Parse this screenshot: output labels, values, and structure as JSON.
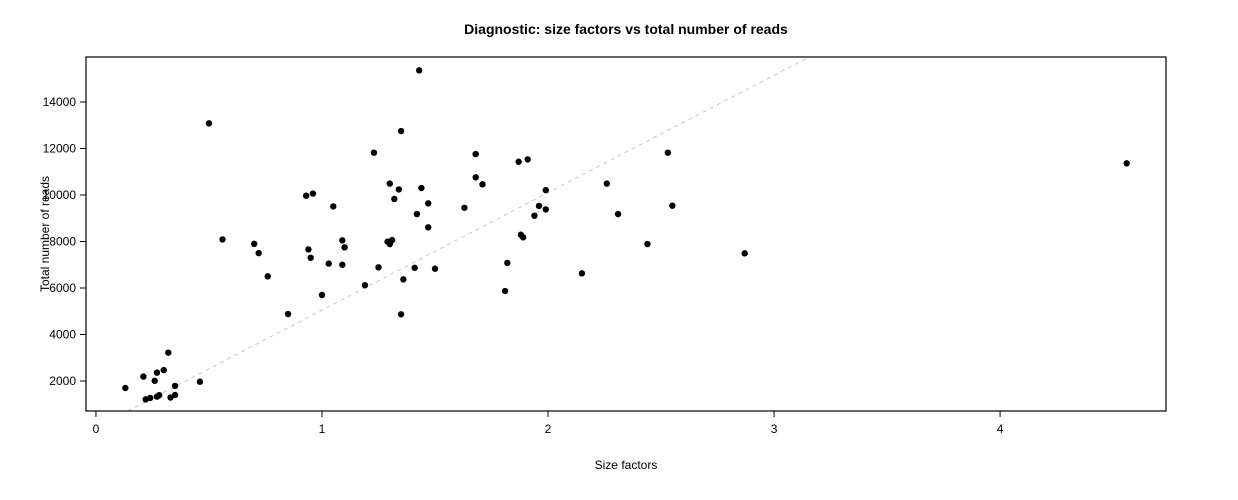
{
  "header": {
    "title": "Diagnostic: size factors vs total number of reads"
  },
  "chart_data": {
    "type": "scatter",
    "title": "Diagnostic: size factors vs total number of reads",
    "xlabel": "Size factors",
    "ylabel": "Total number of reads",
    "xlim": [
      -0.044,
      4.734
    ],
    "ylim": [
      710,
      15935
    ],
    "x_ticks": [
      0,
      1,
      2,
      3,
      4
    ],
    "y_ticks": [
      2000,
      4000,
      6000,
      8000,
      10000,
      12000,
      14000
    ],
    "grid": false,
    "legend": null,
    "point_color": "#000000",
    "point_radius": 3.2,
    "reference_line": {
      "style": "dashed",
      "color": "#c6c6c6",
      "slope": 5050,
      "intercept": 0
    },
    "points": [
      [
        0.13,
        1700
      ],
      [
        0.21,
        2190
      ],
      [
        0.22,
        1210
      ],
      [
        0.24,
        1270
      ],
      [
        0.26,
        2010
      ],
      [
        0.27,
        1330
      ],
      [
        0.27,
        2360
      ],
      [
        0.28,
        1390
      ],
      [
        0.3,
        2470
      ],
      [
        0.32,
        3220
      ],
      [
        0.33,
        1290
      ],
      [
        0.35,
        1400
      ],
      [
        0.35,
        1790
      ],
      [
        0.46,
        1970
      ],
      [
        0.5,
        13080
      ],
      [
        0.56,
        8090
      ],
      [
        0.7,
        7900
      ],
      [
        0.72,
        7500
      ],
      [
        0.76,
        6500
      ],
      [
        0.85,
        4880
      ],
      [
        0.93,
        9970
      ],
      [
        0.94,
        7660
      ],
      [
        0.95,
        7300
      ],
      [
        0.96,
        10060
      ],
      [
        1.0,
        5700
      ],
      [
        1.03,
        7050
      ],
      [
        1.05,
        9510
      ],
      [
        1.09,
        7000
      ],
      [
        1.09,
        8050
      ],
      [
        1.1,
        7750
      ],
      [
        1.19,
        6120
      ],
      [
        1.23,
        11820
      ],
      [
        1.25,
        6890
      ],
      [
        1.29,
        7990
      ],
      [
        1.3,
        7890
      ],
      [
        1.3,
        10490
      ],
      [
        1.31,
        8060
      ],
      [
        1.32,
        9830
      ],
      [
        1.34,
        10240
      ],
      [
        1.35,
        4870
      ],
      [
        1.35,
        12750
      ],
      [
        1.36,
        6370
      ],
      [
        1.41,
        6870
      ],
      [
        1.42,
        9180
      ],
      [
        1.43,
        15360
      ],
      [
        1.44,
        10300
      ],
      [
        1.47,
        8610
      ],
      [
        1.47,
        9640
      ],
      [
        1.5,
        6830
      ],
      [
        1.63,
        9450
      ],
      [
        1.68,
        10760
      ],
      [
        1.68,
        11760
      ],
      [
        1.71,
        10460
      ],
      [
        1.81,
        5870
      ],
      [
        1.82,
        7080
      ],
      [
        1.87,
        11430
      ],
      [
        1.88,
        8290
      ],
      [
        1.89,
        8180
      ],
      [
        1.91,
        11530
      ],
      [
        1.94,
        9110
      ],
      [
        1.96,
        9530
      ],
      [
        1.99,
        9380
      ],
      [
        1.99,
        10210
      ],
      [
        2.15,
        6630
      ],
      [
        2.26,
        10490
      ],
      [
        2.31,
        9180
      ],
      [
        2.44,
        7890
      ],
      [
        2.53,
        11820
      ],
      [
        2.55,
        9540
      ],
      [
        2.87,
        7490
      ],
      [
        4.56,
        11360
      ]
    ]
  },
  "colors": {
    "background": "#ffffff",
    "axis": "#000000",
    "text": "#000000",
    "reference_line": "#c6c6c6",
    "points": "#000000"
  }
}
